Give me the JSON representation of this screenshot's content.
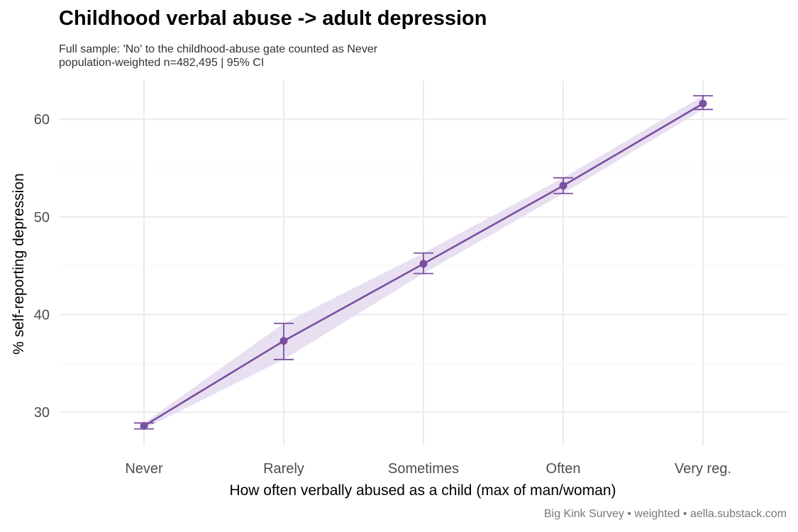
{
  "chart_data": {
    "type": "line",
    "title": "Childhood verbal abuse -> adult depression",
    "subtitle": [
      "Full sample: 'No' to the childhood-abuse gate counted as Never",
      "population-weighted n=482,495 | 95% CI"
    ],
    "caption": "Big Kink Survey  •  weighted  •  aella.substack.com",
    "xlabel": "How often verbally abused as a child (max of man/woman)",
    "ylabel": "% self-reporting depression",
    "categories": [
      "Never",
      "Rarely",
      "Sometimes",
      "Often",
      "Very reg."
    ],
    "series": [
      {
        "values": [
          28.6,
          37.3,
          45.2,
          53.2,
          61.6
        ],
        "ci_low": [
          28.3,
          35.4,
          44.2,
          52.4,
          61.0
        ],
        "ci_high": [
          28.9,
          39.1,
          46.3,
          54.0,
          62.4
        ]
      }
    ],
    "y_ticks": [
      30,
      40,
      50,
      60
    ],
    "ylim": [
      26.6,
      64.0
    ],
    "grid": true,
    "legend": "none",
    "colors": {
      "line": "#7b4fa0",
      "band": "#e4dbef",
      "grid": "#ebebeb"
    }
  }
}
